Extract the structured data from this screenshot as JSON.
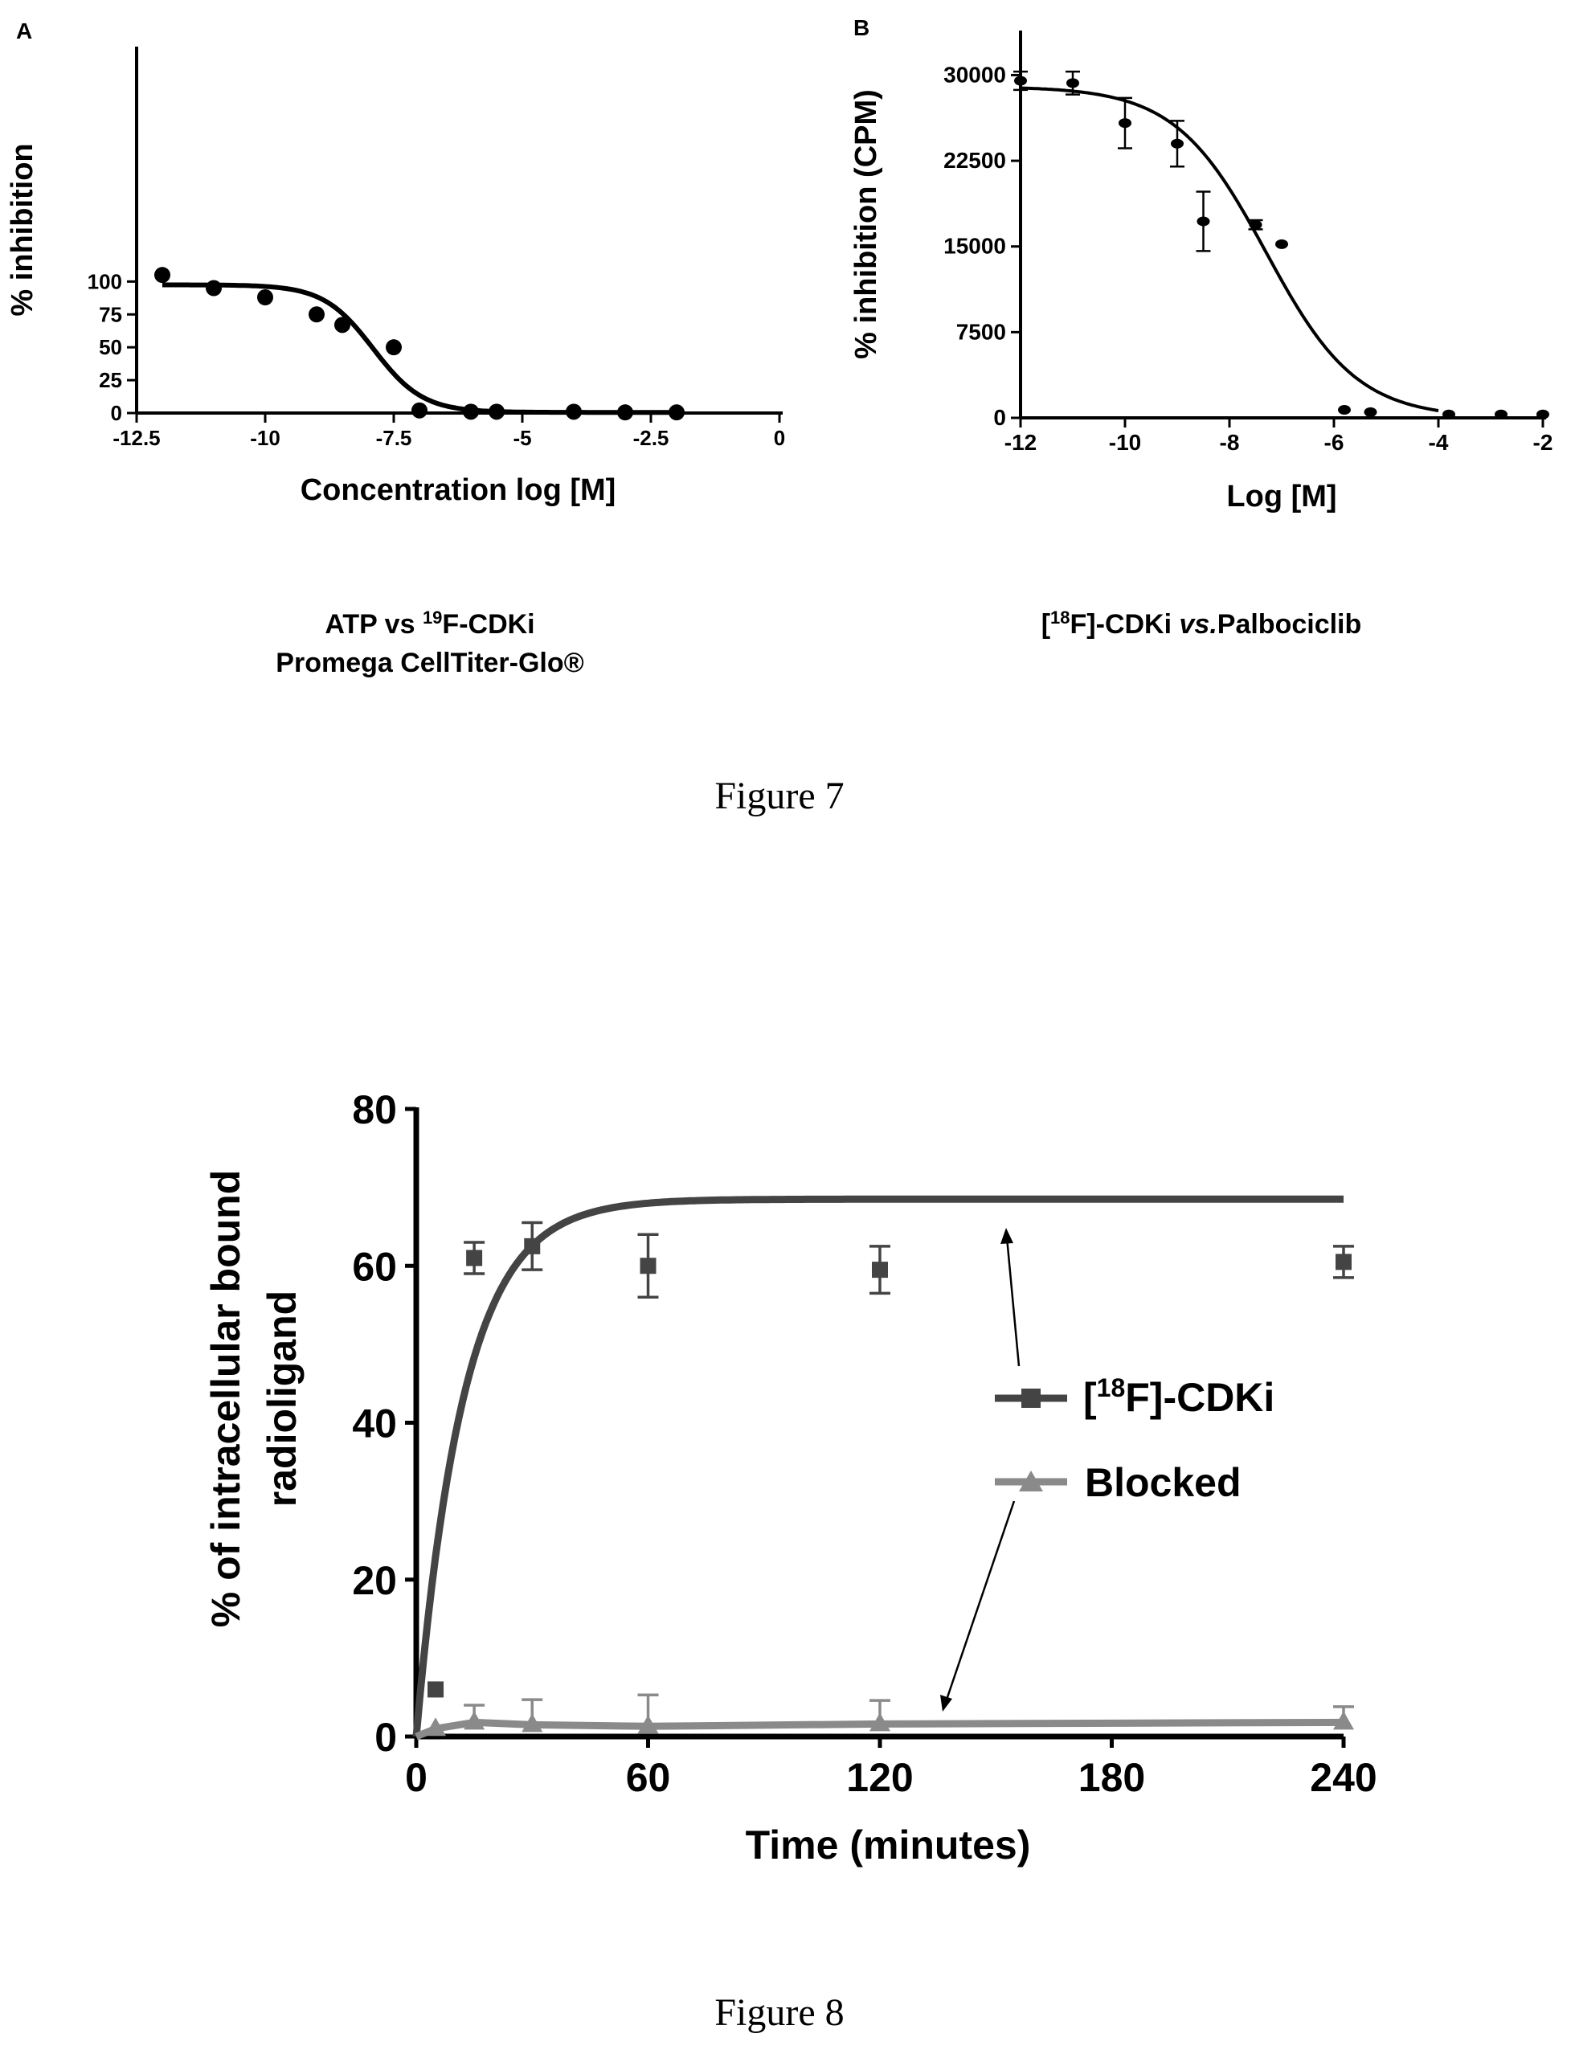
{
  "figure7": {
    "caption": "Figure 7",
    "panel_a": {
      "panel_label": "A",
      "subtitle_line1_pre": "ATP vs ",
      "subtitle_line1_sup": "19",
      "subtitle_line1_post": "F-CDKi",
      "subtitle_line2": "Promega CellTiter-Glo®"
    },
    "panel_b": {
      "panel_label": "B",
      "subtitle_pre": "[",
      "subtitle_sup": "18",
      "subtitle_mid": "F]-CDKi ",
      "subtitle_ital": "vs.",
      "subtitle_post": "Palbociclib"
    }
  },
  "figure8": {
    "caption": "Figure 8",
    "legend": {
      "cdki_pre": "[",
      "cdki_sup": "18",
      "cdki_post": "F]-CDKi",
      "blocked": "Blocked"
    }
  },
  "chart_data": [
    {
      "id": "fig7a",
      "type": "scatter",
      "xlabel": "Concentration log [M]",
      "ylabel": "% inhibition",
      "xlim": [
        -12.5,
        0
      ],
      "ylim": [
        0,
        110
      ],
      "xticks": [
        -12.5,
        -10,
        -7.5,
        -5,
        -2.5,
        0
      ],
      "xtick_labels": [
        "-12.5",
        "-10",
        "-7.5",
        "-5",
        "-2.5",
        "0"
      ],
      "yticks": [
        0,
        25,
        50,
        75,
        100
      ],
      "ytick_labels": [
        "0",
        "25",
        "50",
        "75",
        "100"
      ],
      "points": [
        {
          "x": -12,
          "y": 105
        },
        {
          "x": -11,
          "y": 95
        },
        {
          "x": -10,
          "y": 88
        },
        {
          "x": -9,
          "y": 75
        },
        {
          "x": -8.5,
          "y": 67
        },
        {
          "x": -7.5,
          "y": 50
        },
        {
          "x": -7,
          "y": 2
        },
        {
          "x": -6,
          "y": 1
        },
        {
          "x": -5.5,
          "y": 1
        },
        {
          "x": -4,
          "y": 1
        },
        {
          "x": -3,
          "y": 0.5
        },
        {
          "x": -2,
          "y": 0.5
        }
      ],
      "fit": {
        "model": "sigmoidal",
        "top": 97.5,
        "bottom": 0.5,
        "log_ic50": -7.9,
        "hill": 0.9
      }
    },
    {
      "id": "fig7b",
      "type": "scatter",
      "xlabel": "Log [M]",
      "ylabel": "% inhibition (CPM)",
      "xlim": [
        -12,
        -2
      ],
      "ylim": [
        0,
        32000
      ],
      "xticks": [
        -12,
        -10,
        -8,
        -6,
        -4,
        -2
      ],
      "xtick_labels": [
        "-12",
        "-10",
        "-8",
        "-6",
        "-4",
        "-2"
      ],
      "yticks": [
        0,
        7500,
        15000,
        22500,
        30000
      ],
      "ytick_labels": [
        "0",
        "7500",
        "15000",
        "22500",
        "30000"
      ],
      "points": [
        {
          "x": -12,
          "y": 29500,
          "err": 800
        },
        {
          "x": -11,
          "y": 29300,
          "err": 1000
        },
        {
          "x": -10,
          "y": 25800,
          "err": 2200
        },
        {
          "x": -9,
          "y": 24000,
          "err": 2000
        },
        {
          "x": -8.5,
          "y": 17200,
          "err": 2600
        },
        {
          "x": -7.5,
          "y": 16900,
          "err": 400
        },
        {
          "x": -7,
          "y": 15200,
          "err": 0
        },
        {
          "x": -5.8,
          "y": 700,
          "err": 0
        },
        {
          "x": -5.3,
          "y": 500,
          "err": 0
        },
        {
          "x": -3.8,
          "y": 300,
          "err": 0
        },
        {
          "x": -2.8,
          "y": 300,
          "err": 0
        },
        {
          "x": -2,
          "y": 300,
          "err": 0
        }
      ],
      "fit": {
        "model": "sigmoidal",
        "top": 29000,
        "bottom": 0,
        "log_ic50": -7.3,
        "hill": 0.5
      }
    },
    {
      "id": "fig8",
      "type": "line",
      "xlabel": "Time (minutes)",
      "ylabel": "% of intracellular bound radioligand",
      "xlim": [
        0,
        240
      ],
      "ylim": [
        0,
        80
      ],
      "xticks": [
        0,
        60,
        120,
        180,
        240
      ],
      "xtick_labels": [
        "0",
        "60",
        "120",
        "180",
        "240"
      ],
      "yticks": [
        0,
        20,
        40,
        60,
        80
      ],
      "ytick_labels": [
        "0",
        "20",
        "40",
        "60",
        "80"
      ],
      "series": [
        {
          "name": "[18F]-CDKi",
          "color": "#444444",
          "marker": "square",
          "points": [
            {
              "x": 5,
              "y": 6,
              "err": 0
            },
            {
              "x": 15,
              "y": 61,
              "err": 2
            },
            {
              "x": 30,
              "y": 62.5,
              "err": 3
            },
            {
              "x": 60,
              "y": 60,
              "err": 4
            },
            {
              "x": 120,
              "y": 59.5,
              "err": 3
            },
            {
              "x": 240,
              "y": 60.5,
              "err": 2
            }
          ],
          "fit": {
            "model": "one-phase association",
            "plateau": 68.5,
            "half_time": 8.5
          }
        },
        {
          "name": "Blocked",
          "color": "#8a8a8a",
          "marker": "triangle",
          "points": [
            {
              "x": 5,
              "y": 1,
              "err": 0
            },
            {
              "x": 15,
              "y": 1.8,
              "err": 2.2
            },
            {
              "x": 30,
              "y": 1.5,
              "err": 3.2
            },
            {
              "x": 60,
              "y": 1.3,
              "err": 4
            },
            {
              "x": 120,
              "y": 1.6,
              "err": 3
            },
            {
              "x": 240,
              "y": 1.8,
              "err": 2
            }
          ]
        }
      ],
      "annotations": [
        "arrow to [18F]-CDKi curve",
        "arrow to Blocked curve"
      ]
    }
  ]
}
